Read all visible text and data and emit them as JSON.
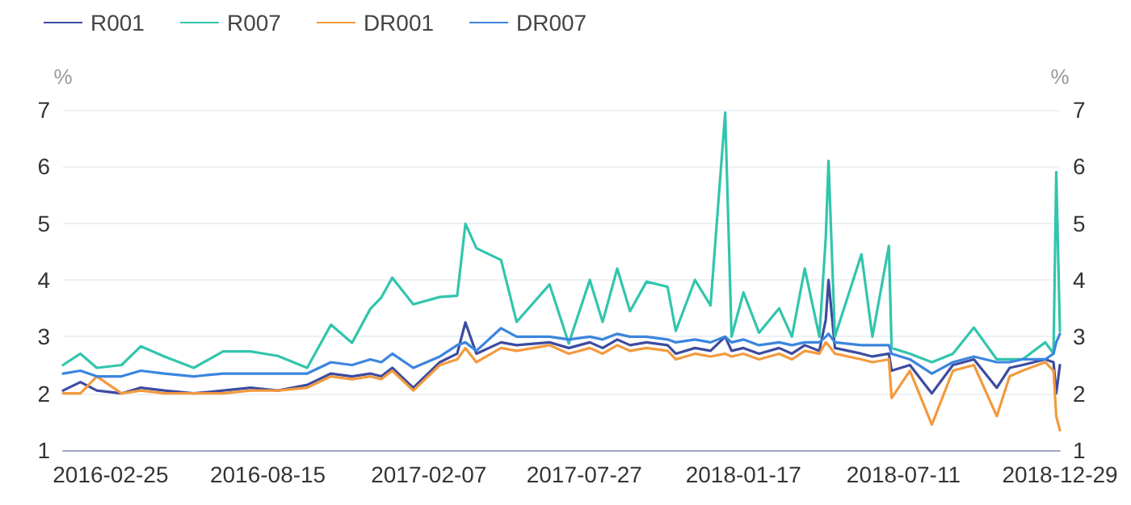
{
  "chart_data": {
    "type": "line",
    "ylabel": "%",
    "y2label": "%",
    "x": [
      "2016-01-04",
      "2016-01-23",
      "2016-02-10",
      "2016-03-08",
      "2016-03-29",
      "2016-04-24",
      "2016-05-26",
      "2016-06-27",
      "2016-07-27",
      "2016-08-26",
      "2016-09-27",
      "2016-10-23",
      "2016-11-15",
      "2016-12-05",
      "2016-12-17",
      "2016-12-29",
      "2017-01-21",
      "2017-02-19",
      "2017-03-10",
      "2017-03-19",
      "2017-03-31",
      "2017-04-27",
      "2017-05-14",
      "2017-06-19",
      "2017-07-10",
      "2017-08-02",
      "2017-08-16",
      "2017-09-01",
      "2017-09-15",
      "2017-10-03",
      "2017-10-26",
      "2017-11-04",
      "2017-11-25",
      "2017-12-12",
      "2017-12-28",
      "2018-01-04",
      "2018-01-17",
      "2018-02-03",
      "2018-02-25",
      "2018-03-11",
      "2018-03-25",
      "2018-04-10",
      "2018-04-17",
      "2018-04-20",
      "2018-04-27",
      "2018-05-26",
      "2018-06-07",
      "2018-06-25",
      "2018-06-28",
      "2018-07-18",
      "2018-08-11",
      "2018-09-03",
      "2018-09-26",
      "2018-10-21",
      "2018-11-04",
      "2018-11-18",
      "2018-12-13",
      "2018-12-22",
      "2018-12-25",
      "2018-12-29"
    ],
    "series": [
      {
        "name": "R001",
        "color": "#3d4ba0",
        "values": [
          2.05,
          2.2,
          2.05,
          2.0,
          2.1,
          2.05,
          2.0,
          2.05,
          2.1,
          2.05,
          2.15,
          2.35,
          2.3,
          2.35,
          2.3,
          2.45,
          2.1,
          2.55,
          2.7,
          3.25,
          2.7,
          2.9,
          2.85,
          2.9,
          2.8,
          2.9,
          2.8,
          2.95,
          2.85,
          2.9,
          2.85,
          2.7,
          2.8,
          2.75,
          3.0,
          2.75,
          2.8,
          2.7,
          2.8,
          2.7,
          2.85,
          2.75,
          3.3,
          4.0,
          2.8,
          2.7,
          2.65,
          2.7,
          2.4,
          2.5,
          2.0,
          2.5,
          2.6,
          2.1,
          2.45,
          2.5,
          2.6,
          2.55,
          2.0,
          2.5
        ]
      },
      {
        "name": "R007",
        "color": "#32c5ad",
        "values": [
          2.5,
          2.7,
          2.45,
          2.5,
          2.83,
          2.65,
          2.45,
          2.74,
          2.74,
          2.66,
          2.45,
          3.21,
          2.89,
          3.49,
          3.69,
          4.04,
          3.57,
          3.7,
          3.72,
          4.99,
          4.56,
          4.35,
          3.26,
          3.92,
          2.88,
          4.0,
          3.26,
          4.2,
          3.45,
          3.97,
          3.88,
          3.1,
          4.0,
          3.55,
          6.95,
          3.0,
          3.78,
          3.07,
          3.5,
          3.0,
          4.2,
          3.0,
          4.75,
          6.1,
          3.0,
          4.45,
          3.0,
          4.6,
          2.8,
          2.7,
          2.55,
          2.7,
          3.16,
          2.6,
          2.6,
          2.6,
          2.9,
          2.7,
          5.9,
          3.1
        ]
      },
      {
        "name": "DR001",
        "color": "#f39a3e",
        "values": [
          2.0,
          2.0,
          2.3,
          2.0,
          2.05,
          2.0,
          2.0,
          2.0,
          2.05,
          2.05,
          2.1,
          2.3,
          2.25,
          2.3,
          2.25,
          2.4,
          2.05,
          2.5,
          2.6,
          2.8,
          2.55,
          2.8,
          2.75,
          2.85,
          2.7,
          2.8,
          2.7,
          2.85,
          2.75,
          2.8,
          2.75,
          2.6,
          2.7,
          2.65,
          2.7,
          2.65,
          2.7,
          2.6,
          2.7,
          2.6,
          2.75,
          2.7,
          2.9,
          2.85,
          2.7,
          2.6,
          2.55,
          2.6,
          1.92,
          2.4,
          1.45,
          2.4,
          2.5,
          1.6,
          2.3,
          2.4,
          2.55,
          2.4,
          1.6,
          1.35
        ]
      },
      {
        "name": "DR007",
        "color": "#3b85de",
        "values": [
          2.35,
          2.4,
          2.3,
          2.3,
          2.4,
          2.35,
          2.3,
          2.35,
          2.35,
          2.35,
          2.35,
          2.55,
          2.5,
          2.6,
          2.55,
          2.7,
          2.45,
          2.65,
          2.85,
          2.9,
          2.75,
          3.15,
          3.0,
          3.0,
          2.95,
          3.0,
          2.95,
          3.05,
          3.0,
          3.0,
          2.95,
          2.9,
          2.95,
          2.9,
          3.0,
          2.9,
          2.95,
          2.85,
          2.9,
          2.85,
          2.9,
          2.9,
          3.0,
          3.05,
          2.9,
          2.85,
          2.85,
          2.85,
          2.7,
          2.6,
          2.35,
          2.55,
          2.65,
          2.55,
          2.55,
          2.6,
          2.6,
          2.7,
          2.9,
          3.05
        ]
      }
    ],
    "xlim": [
      "2016-01-04",
      "2018-12-29"
    ],
    "xticks": [
      "2016-02-25",
      "2016-08-15",
      "2017-02-07",
      "2017-07-27",
      "2018-01-17",
      "2018-07-11",
      "2018-12-29"
    ],
    "ylim": [
      1,
      7
    ],
    "yticks": [
      1,
      2,
      3,
      4,
      5,
      6,
      7
    ],
    "y2lim": [
      1,
      7
    ],
    "y2ticks": [
      1,
      2,
      3,
      4,
      5,
      6,
      7
    ],
    "grid": "y",
    "legend": "top left",
    "marker": "none",
    "line_style": "solid"
  }
}
